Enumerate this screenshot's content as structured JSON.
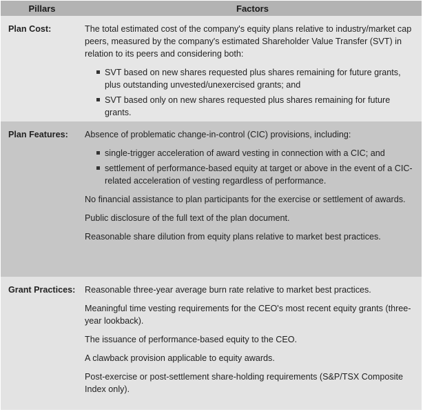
{
  "header": {
    "pillars": "Pillars",
    "factors": "Factors"
  },
  "rows": [
    {
      "pillar": "Plan Cost:",
      "paragraphs": [
        "The total estimated cost of the company's equity plans relative to industry/market cap peers, measured by the company's estimated Shareholder Value Transfer (SVT) in relation to its peers and considering both:"
      ],
      "bullets": [
        "SVT based on new shares requested plus shares remaining for future grants, plus outstanding unvested/unexercised grants; and",
        "SVT based only on new shares requested plus shares remaining for future grants."
      ],
      "after": []
    },
    {
      "pillar": "Plan Features:",
      "paragraphs": [
        "Absence of problematic change-in-control (CIC) provisions, including:"
      ],
      "bullets": [
        "single-trigger acceleration of award vesting in connection with a CIC; and",
        "settlement of performance-based equity at target or above in the event of a CIC-related acceleration of vesting regardless of performance."
      ],
      "after": [
        "No financial assistance to plan participants for the exercise or settlement of awards.",
        "Public disclosure of the full text of the plan document.",
        "Reasonable share dilution from equity plans relative to market best practices."
      ]
    },
    {
      "pillar": "Grant Practices:",
      "paragraphs": [
        "Reasonable three-year average burn rate relative to market best practices.",
        "Meaningful time vesting requirements for the CEO's most recent equity grants (three-year lookback).",
        "The issuance of performance-based equity to the CEO.",
        "A clawback provision applicable to equity awards.",
        "Post-exercise or post-settlement share-holding requirements (S&P/TSX Composite Index only)."
      ],
      "bullets": [],
      "after": []
    }
  ]
}
